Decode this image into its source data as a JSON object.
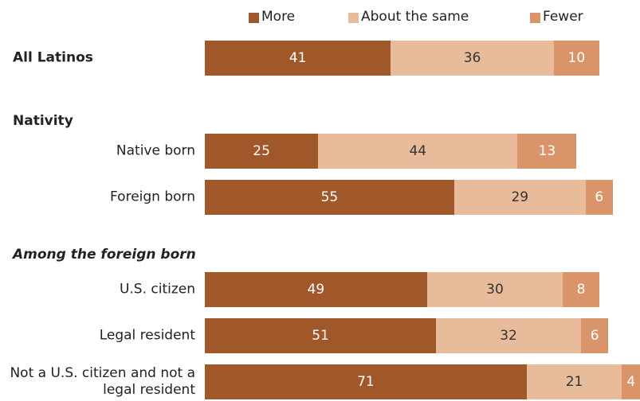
{
  "chart_data": {
    "type": "bar",
    "stacked": true,
    "orientation": "horizontal",
    "categories": [
      "All Latinos",
      "Native born",
      "Foreign born",
      "U.S. citizen",
      "Legal resident",
      "Not a U.S. citizen and not a legal resident"
    ],
    "group_headers": [
      null,
      "Nativity",
      null,
      "Among the foreign born",
      null,
      null
    ],
    "series": [
      {
        "name": "More",
        "color": "#a0582a",
        "values": [
          41,
          25,
          55,
          49,
          51,
          71
        ]
      },
      {
        "name": "About the same",
        "color": "#e8bc9b",
        "values": [
          36,
          44,
          29,
          30,
          32,
          21
        ]
      },
      {
        "name": "Fewer",
        "color": "#d99569",
        "values": [
          10,
          13,
          6,
          8,
          6,
          4
        ]
      }
    ]
  }
}
